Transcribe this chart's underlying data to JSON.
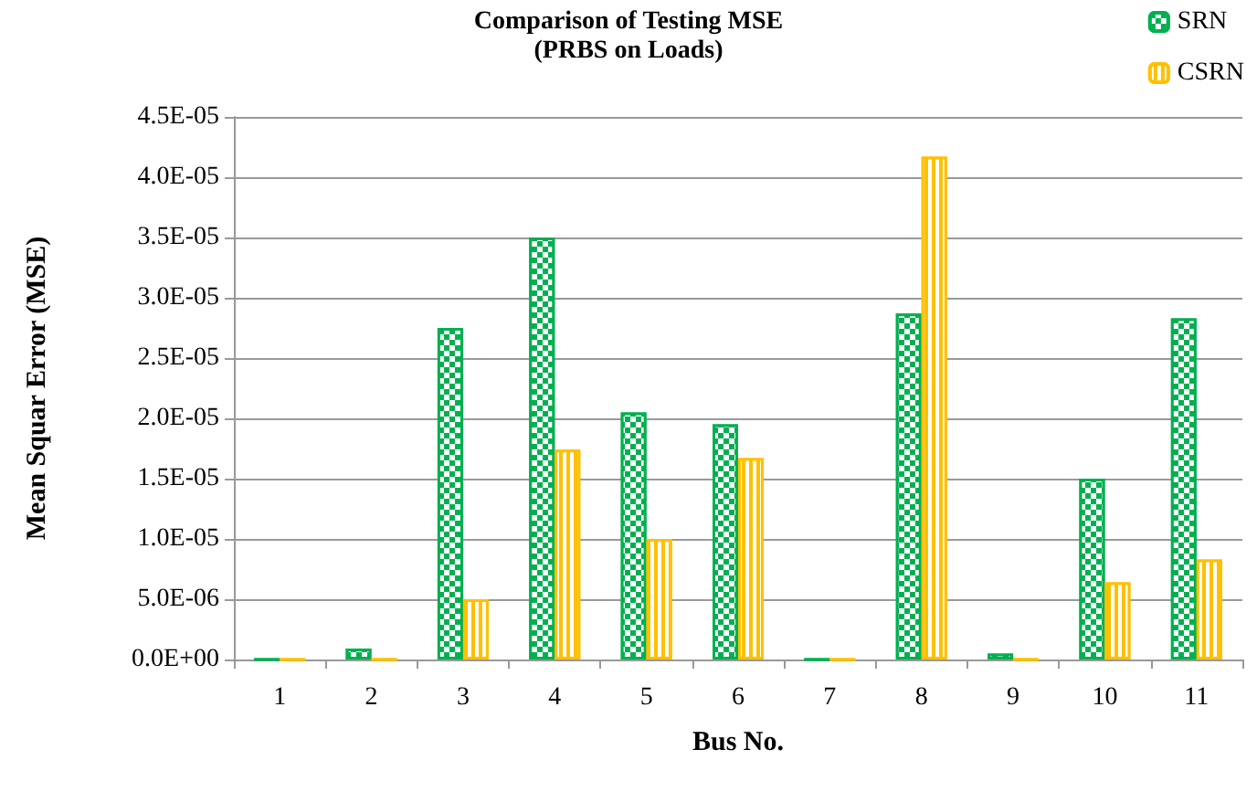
{
  "chart_data": {
    "type": "bar",
    "title": "Comparison of Testing MSE",
    "subtitle": "(PRBS on Loads)",
    "xlabel": "Bus No.",
    "ylabel": "Mean Squar Error (MSE)",
    "categories": [
      "1",
      "2",
      "3",
      "4",
      "5",
      "6",
      "7",
      "8",
      "9",
      "10",
      "11"
    ],
    "series": [
      {
        "name": "SRN",
        "color": "#00b050",
        "values": [
          0,
          9e-07,
          2.75e-05,
          3.5e-05,
          2.05e-05,
          1.95e-05,
          0,
          2.87e-05,
          5e-07,
          1.5e-05,
          2.83e-05
        ]
      },
      {
        "name": "CSRN",
        "color": "#ffc000",
        "values": [
          0,
          0,
          5e-06,
          1.74e-05,
          1e-05,
          1.67e-05,
          0,
          4.17e-05,
          0,
          6.4e-06,
          8.3e-06
        ]
      }
    ],
    "ylim": [
      0,
      4.5e-05
    ],
    "yticks": [
      {
        "value": 0,
        "label": "0.0E+00"
      },
      {
        "value": 5e-06,
        "label": "5.0E-06"
      },
      {
        "value": 1e-05,
        "label": "1.0E-05"
      },
      {
        "value": 1.5e-05,
        "label": "1.5E-05"
      },
      {
        "value": 2e-05,
        "label": "2.0E-05"
      },
      {
        "value": 2.5e-05,
        "label": "2.5E-05"
      },
      {
        "value": 3e-05,
        "label": "3.0E-05"
      },
      {
        "value": 3.5e-05,
        "label": "3.5E-05"
      },
      {
        "value": 4e-05,
        "label": "4.0E-05"
      },
      {
        "value": 4.5e-05,
        "label": "4.5E-05"
      }
    ],
    "grid": "y",
    "legend": "top right"
  }
}
